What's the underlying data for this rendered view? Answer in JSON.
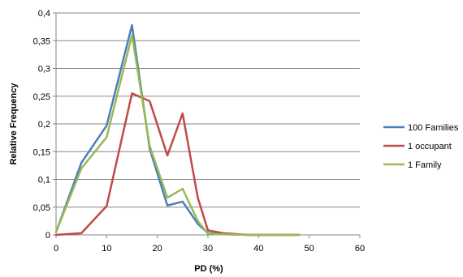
{
  "chart_data": {
    "type": "line",
    "title": "",
    "xlabel": "PD (%)",
    "ylabel": "Relative Frequency",
    "xlim": [
      0,
      60
    ],
    "ylim": [
      0,
      0.4
    ],
    "x_ticks": [
      0,
      10,
      20,
      30,
      40,
      50,
      60
    ],
    "x_tick_labels": [
      "0",
      "10",
      "20",
      "30",
      "40",
      "50",
      "60"
    ],
    "y_ticks": [
      0,
      0.05,
      0.1,
      0.15,
      0.2,
      0.25,
      0.3,
      0.35,
      0.4
    ],
    "y_tick_labels": [
      "0",
      "0,05",
      "0,1",
      "0,15",
      "0,2",
      "0,25",
      "0,3",
      "0,35",
      "0,4"
    ],
    "grid": "horizontal",
    "legend_position": "right",
    "series": [
      {
        "name": "100 Families",
        "color": "#4a7ebb",
        "points": [
          [
            0,
            0.005
          ],
          [
            5,
            0.13
          ],
          [
            10,
            0.197
          ],
          [
            15,
            0.378
          ],
          [
            18.5,
            0.155
          ],
          [
            22,
            0.053
          ],
          [
            25,
            0.06
          ],
          [
            28,
            0.02
          ],
          [
            30,
            0.003
          ],
          [
            33,
            0.001
          ],
          [
            38,
            0
          ],
          [
            48,
            0
          ]
        ]
      },
      {
        "name": "1 occupant",
        "color": "#be4b48",
        "points": [
          [
            0,
            0
          ],
          [
            5,
            0.003
          ],
          [
            10,
            0.052
          ],
          [
            15,
            0.255
          ],
          [
            18.5,
            0.241
          ],
          [
            22,
            0.143
          ],
          [
            25,
            0.219
          ],
          [
            28,
            0.067
          ],
          [
            30,
            0.008
          ],
          [
            33,
            0.003
          ],
          [
            38,
            0
          ],
          [
            48,
            0
          ]
        ]
      },
      {
        "name": "1 Family",
        "color": "#98b954",
        "points": [
          [
            0,
            0.005
          ],
          [
            5,
            0.12
          ],
          [
            10,
            0.176
          ],
          [
            15,
            0.36
          ],
          [
            18.5,
            0.16
          ],
          [
            22,
            0.067
          ],
          [
            25,
            0.083
          ],
          [
            28,
            0.025
          ],
          [
            30,
            0.002
          ],
          [
            33,
            0.001
          ],
          [
            38,
            0
          ],
          [
            48,
            0
          ]
        ]
      }
    ]
  }
}
